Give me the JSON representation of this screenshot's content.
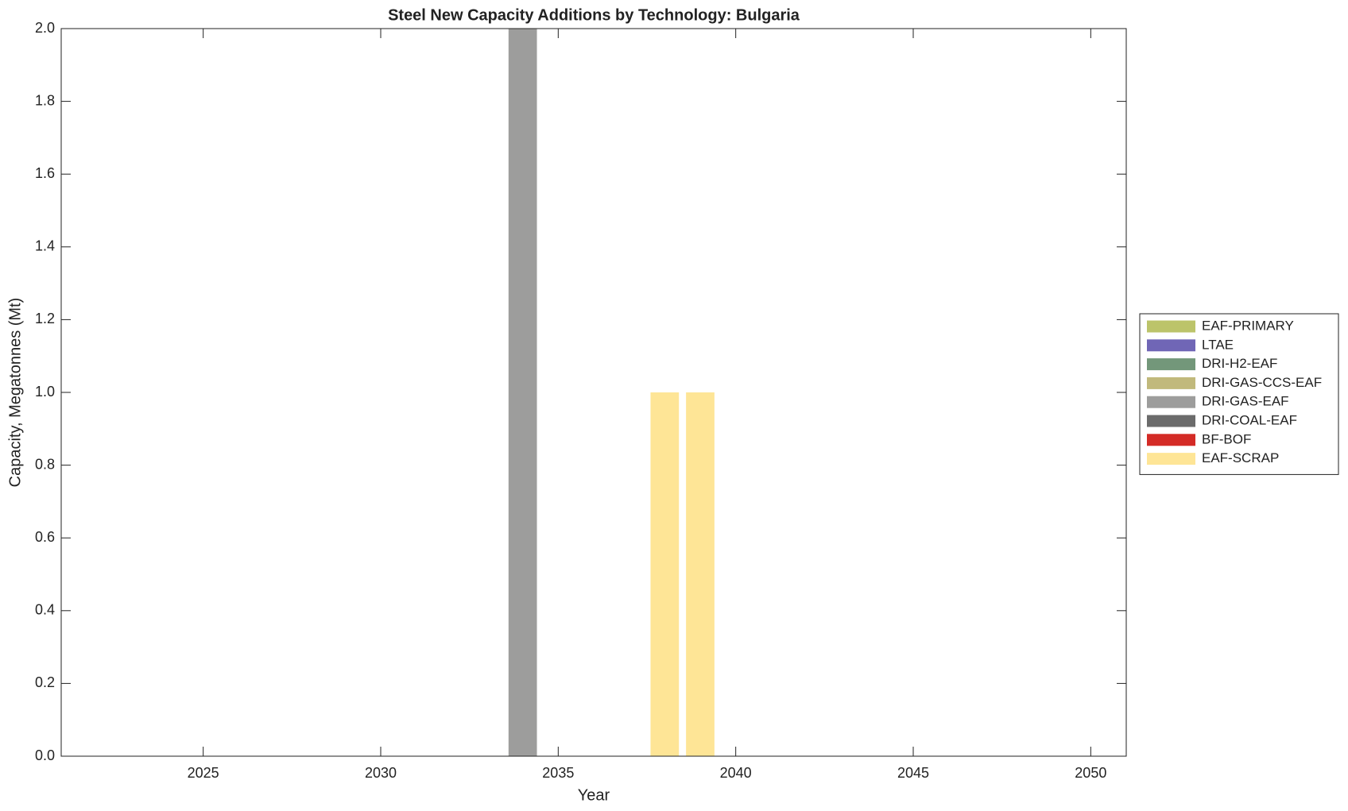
{
  "chart_data": {
    "type": "bar",
    "stacked": true,
    "title": "Steel New Capacity Additions by Technology: Bulgaria",
    "xlabel": "Year",
    "ylabel": "Capacity, Megatonnes (Mt)",
    "x": [
      2022,
      2023,
      2024,
      2025,
      2026,
      2027,
      2028,
      2029,
      2030,
      2031,
      2032,
      2033,
      2034,
      2035,
      2036,
      2037,
      2038,
      2039,
      2040,
      2041,
      2042,
      2043,
      2044,
      2045,
      2046,
      2047,
      2048,
      2049,
      2050
    ],
    "series": [
      {
        "name": "EAF-PRIMARY",
        "color": "#bcc46a",
        "values": [
          0,
          0,
          0,
          0,
          0,
          0,
          0,
          0,
          0,
          0,
          0,
          0,
          0,
          0,
          0,
          0,
          0,
          0,
          0,
          0,
          0,
          0,
          0,
          0,
          0,
          0,
          0,
          0,
          0
        ]
      },
      {
        "name": "LTAE",
        "color": "#7066b6",
        "values": [
          0,
          0,
          0,
          0,
          0,
          0,
          0,
          0,
          0,
          0,
          0,
          0,
          0,
          0,
          0,
          0,
          0,
          0,
          0,
          0,
          0,
          0,
          0,
          0,
          0,
          0,
          0,
          0,
          0
        ]
      },
      {
        "name": "DRI-H2-EAF",
        "color": "#73977a",
        "values": [
          0,
          0,
          0,
          0,
          0,
          0,
          0,
          0,
          0,
          0,
          0,
          0,
          0,
          0,
          0,
          0,
          0,
          0,
          0,
          0,
          0,
          0,
          0,
          0,
          0,
          0,
          0,
          0,
          0
        ]
      },
      {
        "name": "DRI-GAS-CCS-EAF",
        "color": "#c1b97c",
        "values": [
          0,
          0,
          0,
          0,
          0,
          0,
          0,
          0,
          0,
          0,
          0,
          0,
          0,
          0,
          0,
          0,
          0,
          0,
          0,
          0,
          0,
          0,
          0,
          0,
          0,
          0,
          0,
          0,
          0
        ]
      },
      {
        "name": "DRI-GAS-EAF",
        "color": "#9d9d9c",
        "values": [
          0,
          0,
          0,
          0,
          0,
          0,
          0,
          0,
          0,
          0,
          0,
          0,
          2,
          0,
          0,
          0,
          0,
          0,
          0,
          0,
          0,
          0,
          0,
          0,
          0,
          0,
          0,
          0,
          0
        ]
      },
      {
        "name": "DRI-COAL-EAF",
        "color": "#6b6b6b",
        "values": [
          0,
          0,
          0,
          0,
          0,
          0,
          0,
          0,
          0,
          0,
          0,
          0,
          0,
          0,
          0,
          0,
          0,
          0,
          0,
          0,
          0,
          0,
          0,
          0,
          0,
          0,
          0,
          0,
          0
        ]
      },
      {
        "name": "BF-BOF",
        "color": "#d42b26",
        "values": [
          0,
          0,
          0,
          0,
          0,
          0,
          0,
          0,
          0,
          0,
          0,
          0,
          0,
          0,
          0,
          0,
          0,
          0,
          0,
          0,
          0,
          0,
          0,
          0,
          0,
          0,
          0,
          0,
          0
        ]
      },
      {
        "name": "EAF-SCRAP",
        "color": "#fee596",
        "values": [
          0,
          0,
          0,
          0,
          0,
          0,
          0,
          0,
          0,
          0,
          0,
          0,
          0,
          0,
          0,
          0,
          1,
          1,
          0,
          0,
          0,
          0,
          0,
          0,
          0,
          0,
          0,
          0,
          0
        ]
      }
    ],
    "xlim": [
      2021,
      2051
    ],
    "xticks": [
      2025,
      2030,
      2035,
      2040,
      2045,
      2050
    ],
    "ylim": [
      0,
      2
    ],
    "yticks": [
      {
        "value": 0,
        "label": "0.0"
      },
      0.2,
      0.4,
      0.6,
      0.8,
      {
        "value": 1,
        "label": "1.0"
      },
      1.2,
      1.4,
      1.6,
      1.8,
      {
        "value": 2,
        "label": "2.0"
      }
    ],
    "legend": "right",
    "grid": false
  }
}
